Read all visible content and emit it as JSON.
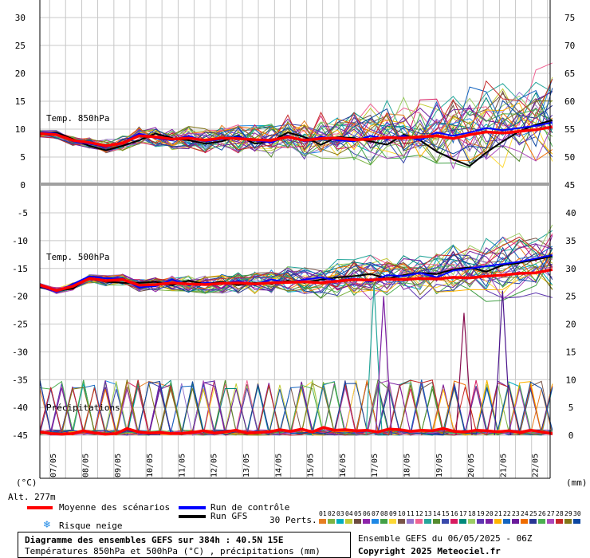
{
  "chart_data": {
    "type": "line",
    "title": "Diagramme des ensembles GEFS sur 384h : 40.5N 15E",
    "subtitle": "Températures 850hPa et 500hPa (°C) , précipitations (mm)",
    "panel_labels": [
      "Temp. 850hPa",
      "Temp. 500hPa",
      "Précipitations"
    ],
    "left_axis_label": "(°C)",
    "right_axis_label": "(mm)",
    "altitude_label": "Alt. 277m",
    "top_panel": {
      "left_ticks": [
        "30",
        "25",
        "20",
        "15",
        "10",
        "5",
        "0"
      ],
      "right_ticks": [
        "75",
        "70",
        "65",
        "60",
        "55",
        "50",
        "45"
      ]
    },
    "bottom_panel": {
      "left_ticks": [
        "-5",
        "-10",
        "-15",
        "-20",
        "-25",
        "-30",
        "-35",
        "-40",
        "-45"
      ],
      "right_ticks": [
        "40",
        "35",
        "30",
        "25",
        "20",
        "15",
        "10",
        "5",
        "0"
      ]
    },
    "x_ticks": [
      "07/05",
      "08/05",
      "09/05",
      "10/05",
      "11/05",
      "12/05",
      "13/05",
      "14/05",
      "15/05",
      "16/05",
      "17/05",
      "18/05",
      "19/05",
      "20/05",
      "21/05",
      "22/05"
    ],
    "series": [
      {
        "name": "Moyenne des scénarios",
        "color": "#ff0000"
      },
      {
        "name": "Run de contrôle",
        "color": "#0000ff"
      },
      {
        "name": "Run GFS",
        "color": "#000000"
      }
    ],
    "snow_label": "Risque neige",
    "perts_label": "30 Perts.",
    "pert_numbers": [
      "01",
      "02",
      "03",
      "04",
      "05",
      "06",
      "07",
      "08",
      "09",
      "10",
      "11",
      "12",
      "13",
      "14",
      "15",
      "16",
      "17",
      "18",
      "19",
      "20",
      "21",
      "22",
      "23",
      "24",
      "25",
      "26",
      "27",
      "28",
      "29",
      "30"
    ],
    "pert_colors": [
      "#e67e22",
      "#7cb342",
      "#00acc1",
      "#c0ca33",
      "#6d4c41",
      "#8e24aa",
      "#1e88e5",
      "#43a047",
      "#fdd835",
      "#795548",
      "#9575cd",
      "#f06292",
      "#26a69a",
      "#558b2f",
      "#3949ab",
      "#d81b60",
      "#00897b",
      "#9ccc65",
      "#5e35b1",
      "#7b1fa2",
      "#ffb300",
      "#1565c0",
      "#6a1b9a",
      "#ef6c00",
      "#283593",
      "#4caf50",
      "#ab47bc",
      "#c62828",
      "#827717",
      "#0d47a1"
    ],
    "mean_850": [
      9.2,
      9.0,
      8.0,
      7.6,
      7.0,
      7.5,
      8.8,
      8.6,
      8.2,
      8.4,
      8.0,
      8.4,
      8.3,
      8.1,
      8.0,
      8.6,
      8.0,
      8.3,
      8.4,
      8.1,
      8.2,
      8.5,
      8.4,
      8.6,
      8.8,
      8.3,
      9.0,
      9.5,
      9.3,
      9.6,
      9.9,
      10.4
    ],
    "ctrl_850": [
      9.4,
      9.2,
      7.8,
      7.4,
      6.8,
      7.6,
      9.2,
      8.4,
      8.0,
      8.8,
      7.8,
      8.2,
      8.6,
      8.0,
      7.6,
      8.8,
      7.8,
      8.6,
      8.0,
      7.8,
      8.8,
      8.2,
      8.8,
      8.0,
      9.4,
      8.8,
      9.4,
      10.2,
      9.8,
      10.2,
      10.6,
      11.2
    ],
    "gfs_850": [
      9.0,
      9.4,
      8.2,
      7.0,
      6.2,
      7.0,
      8.0,
      9.2,
      8.4,
      8.0,
      7.4,
      7.8,
      8.8,
      7.4,
      7.8,
      9.4,
      8.6,
      7.2,
      8.6,
      8.4,
      7.8,
      7.2,
      9.0,
      8.0,
      6.0,
      4.6,
      3.4,
      5.8,
      7.8,
      9.6,
      10.8,
      11.6
    ],
    "mean_500": [
      -18.0,
      -19.0,
      -18.2,
      -16.8,
      -17.2,
      -17.0,
      -18.0,
      -17.9,
      -17.6,
      -17.8,
      -17.9,
      -17.7,
      -17.6,
      -17.8,
      -17.6,
      -17.5,
      -17.4,
      -17.6,
      -17.3,
      -17.0,
      -17.1,
      -16.9,
      -17.0,
      -16.8,
      -16.9,
      -16.6,
      -16.7,
      -16.4,
      -16.2,
      -15.9,
      -15.8,
      -15.2
    ],
    "ctrl_500": [
      -18.2,
      -19.2,
      -17.8,
      -16.4,
      -16.8,
      -16.8,
      -18.4,
      -18.2,
      -17.0,
      -18.0,
      -17.6,
      -17.8,
      -17.2,
      -18.0,
      -17.0,
      -17.6,
      -17.0,
      -16.6,
      -17.2,
      -16.8,
      -17.4,
      -16.2,
      -16.4,
      -15.8,
      -16.6,
      -15.4,
      -15.0,
      -14.6,
      -14.2,
      -13.8,
      -13.2,
      -12.6
    ],
    "gfs_500": [
      -18.4,
      -19.0,
      -18.6,
      -16.6,
      -17.4,
      -17.6,
      -17.6,
      -17.4,
      -18.0,
      -17.2,
      -17.8,
      -17.4,
      -18.0,
      -17.6,
      -17.8,
      -17.2,
      -17.6,
      -17.0,
      -16.6,
      -16.4,
      -16.0,
      -16.8,
      -16.2,
      -15.8,
      -16.0,
      -15.2,
      -14.8,
      -15.6,
      -14.4,
      -14.0,
      -13.4,
      -12.8
    ],
    "mean_precip": [
      0.6,
      0.3,
      0.2,
      0.3,
      0.8,
      0.4,
      0.2,
      0.3,
      1.2,
      0.6,
      0.4,
      0.5,
      0.3,
      0.3,
      0.5,
      0.8,
      0.4,
      0.6,
      0.9,
      0.4,
      0.5,
      0.6,
      1.0,
      0.7,
      1.1,
      0.6,
      1.4,
      0.9,
      1.0,
      0.8,
      0.9,
      0.6,
      1.1,
      1.0,
      0.7,
      0.9,
      0.8,
      1.2,
      0.7,
      0.6,
      0.9,
      0.8,
      0.6,
      0.8,
      0.5,
      0.9,
      0.6,
      0.3
    ],
    "spike_precip": {
      "times": [
        16.6,
        16.9,
        19.4,
        20.6
      ],
      "values": [
        27,
        25,
        22,
        26
      ]
    },
    "top_ylim": [
      0,
      30
    ],
    "bottom_ylim": [
      -45,
      -5
    ],
    "precip_ylim": [
      0,
      40
    ],
    "grid": true
  },
  "footer": {
    "title": "Diagramme des ensembles GEFS sur 384h : 40.5N 15E",
    "subtitle": "Températures 850hPa et 500hPa (°C) , précipitations (mm)",
    "run_label": "Ensemble GEFS du 06/05/2025 - 06Z",
    "copyright": "Copyright 2025 Meteociel.fr"
  }
}
